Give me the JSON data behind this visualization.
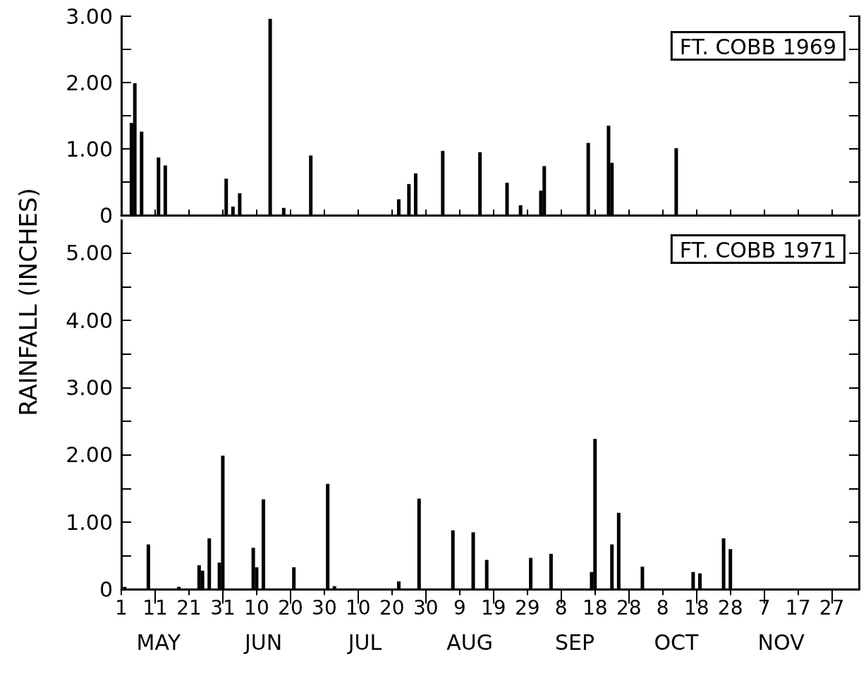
{
  "chart_data": [
    {
      "type": "bar",
      "title": "FT. COBB 1969",
      "ylabel": "RAINFALL (INCHES)",
      "color": "#000000",
      "tick_labels": "y",
      "x": [
        "--05-04",
        "--05-05",
        "--05-07",
        "--05-12",
        "--05-14",
        "--06-01",
        "--06-03",
        "--06-05",
        "--06-14",
        "--06-18",
        "--06-26",
        "--07-22",
        "--07-25",
        "--07-27",
        "--08-04",
        "--08-15",
        "--08-23",
        "--08-27",
        "--09-02",
        "--09-03",
        "--09-16",
        "--09-22",
        "--09-23",
        "--10-12"
      ],
      "values": [
        1.39,
        1.99,
        1.26,
        0.87,
        0.75,
        0.55,
        0.13,
        0.33,
        2.96,
        0.11,
        0.9,
        0.24,
        0.47,
        0.63,
        0.97,
        0.95,
        0.49,
        0.15,
        0.37,
        0.74,
        1.09,
        1.35,
        0.79,
        1.01
      ],
      "xlim": [
        "--05-01",
        "--12-05"
      ],
      "xticks": [
        {
          "value": "--05-01",
          "label": "1"
        },
        {
          "value": "--05-11",
          "label": "11"
        },
        {
          "value": "--05-21",
          "label": "21"
        },
        {
          "value": "--05-31",
          "label": "31"
        },
        {
          "value": "--06-10",
          "label": "10"
        },
        {
          "value": "--06-20",
          "label": "20"
        },
        {
          "value": "--06-30",
          "label": "30"
        },
        {
          "value": "--07-10",
          "label": "10"
        },
        {
          "value": "--07-20",
          "label": "20"
        },
        {
          "value": "--07-30",
          "label": "30"
        },
        {
          "value": "--08-09",
          "label": "9"
        },
        {
          "value": "--08-19",
          "label": "19"
        },
        {
          "value": "--08-29",
          "label": "29"
        },
        {
          "value": "--09-08",
          "label": "8"
        },
        {
          "value": "--09-18",
          "label": "18"
        },
        {
          "value": "--09-28",
          "label": "28"
        },
        {
          "value": "--10-08",
          "label": "8"
        },
        {
          "value": "--10-18",
          "label": "18"
        },
        {
          "value": "--10-28",
          "label": "28"
        },
        {
          "value": "--11-07",
          "label": "7"
        },
        {
          "value": "--11-17",
          "label": "17"
        },
        {
          "value": "--11-27",
          "label": "27"
        }
      ],
      "ylim": [
        0,
        3
      ],
      "yticks": [
        0,
        {
          "value": 0.5,
          "label": null
        },
        {
          "value": 1,
          "label": "1.00"
        },
        {
          "value": 1.5,
          "label": null
        },
        {
          "value": 2,
          "label": "2.00"
        },
        {
          "value": 2.5,
          "label": null
        },
        {
          "value": 3,
          "label": "3.00"
        }
      ]
    },
    {
      "type": "bar",
      "title": "FT. COBB 1971",
      "color": "#000000",
      "x": [
        "--05-02",
        "--05-09",
        "--05-18",
        "--05-24",
        "--05-25",
        "--05-27",
        "--05-30",
        "--05-31",
        "--06-09",
        "--06-10",
        "--06-12",
        "--06-21",
        "--07-01",
        "--07-03",
        "--07-22",
        "--07-28",
        "--08-07",
        "--08-13",
        "--08-17",
        "--08-30",
        "--09-05",
        "--09-17",
        "--09-18",
        "--09-23",
        "--09-25",
        "--10-02",
        "--10-17",
        "--10-19",
        "--10-26",
        "--10-28"
      ],
      "values": [
        0.04,
        0.67,
        0.04,
        0.36,
        0.28,
        0.76,
        0.4,
        1.99,
        0.62,
        0.33,
        1.34,
        0.33,
        1.57,
        0.05,
        0.12,
        1.35,
        0.88,
        0.85,
        0.44,
        0.47,
        0.53,
        0.26,
        2.24,
        0.67,
        1.14,
        0.34,
        0.26,
        0.24,
        0.76,
        0.6
      ],
      "xlim": [
        "--05-01",
        "--12-05"
      ],
      "xticks": [
        {
          "value": "--05-01",
          "label": "1"
        },
        {
          "value": "--05-11",
          "label": "11"
        },
        {
          "value": "--05-21",
          "label": "21"
        },
        {
          "value": "--05-31",
          "label": "31"
        },
        {
          "value": "--06-10",
          "label": "10"
        },
        {
          "value": "--06-20",
          "label": "20"
        },
        {
          "value": "--06-30",
          "label": "30"
        },
        {
          "value": "--07-10",
          "label": "10"
        },
        {
          "value": "--07-20",
          "label": "20"
        },
        {
          "value": "--07-30",
          "label": "30"
        },
        {
          "value": "--08-09",
          "label": "9"
        },
        {
          "value": "--08-19",
          "label": "19"
        },
        {
          "value": "--08-29",
          "label": "29"
        },
        {
          "value": "--09-08",
          "label": "8"
        },
        {
          "value": "--09-18",
          "label": "18"
        },
        {
          "value": "--09-28",
          "label": "28"
        },
        {
          "value": "--10-08",
          "label": "8"
        },
        {
          "value": "--10-18",
          "label": "18"
        },
        {
          "value": "--10-28",
          "label": "28"
        },
        {
          "value": "--11-07",
          "label": "7"
        },
        {
          "value": "--11-17",
          "label": "17"
        },
        {
          "value": "--11-27",
          "label": "27"
        }
      ],
      "ylim": [
        0,
        5.5
      ],
      "yticks": [
        0,
        {
          "value": 0.5,
          "label": null
        },
        {
          "value": 1,
          "label": "1.00"
        },
        {
          "value": 1.5,
          "label": null
        },
        {
          "value": 2,
          "label": "2.00"
        },
        {
          "value": 2.5,
          "label": null
        },
        {
          "value": 3,
          "label": "3.00"
        },
        {
          "value": 3.5,
          "label": null
        },
        {
          "value": 4,
          "label": "4.00"
        },
        {
          "value": 4.5,
          "label": null
        },
        {
          "value": 5,
          "label": "5.00"
        }
      ],
      "annotations": [
        "MAY",
        "JUN",
        "JUL",
        "AUG",
        "SEP",
        "OCT",
        "NOV"
      ]
    }
  ]
}
